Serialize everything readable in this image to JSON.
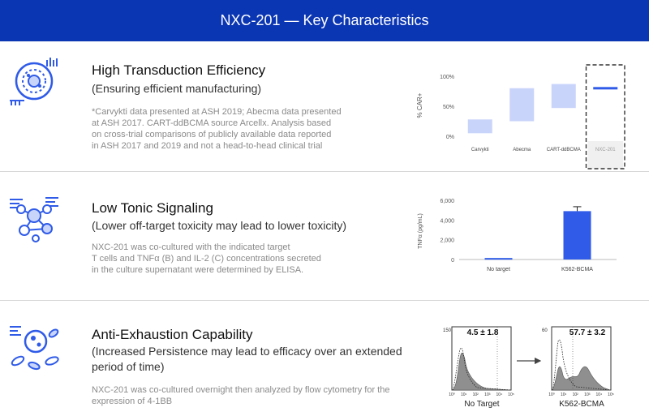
{
  "header": {
    "title": "NXC-201 — Key Characteristics"
  },
  "rows": [
    {
      "title": "High Transduction Efficiency",
      "subtitle": "(Ensuring efficient manufacturing)",
      "note": "*Carvykti data presented at ASH 2019; Abecma data presented\nat ASH 2017. CART-ddBCMA source Arcellx. Analysis based\non cross-trial comparisons of publicly available data reported\nin ASH 2017 and 2019 and not a head-to-head clinical trial",
      "icon": "cell-icon"
    },
    {
      "title": "Low Tonic Signaling",
      "subtitle": "(Lower off-target toxicity may lead to lower toxicity)",
      "note": "NXC-201 was co-cultured with the indicated target\nT cells and TNFα (B) and IL-2 (C) concentrations secreted\nin the culture supernatant were determined by ELISA.",
      "icon": "network-icon"
    },
    {
      "title": "Anti-Exhaustion Capability",
      "subtitle": "(Increased Persistence may lead to efficacy over an extended period of time)",
      "note": "NXC-201 was co-cultured overnight then analyzed by flow cytometry for the\nexpression of 4-1BB",
      "icon": "cells-icon"
    }
  ],
  "colors": {
    "banner": "#0b36b3",
    "accent": "#2f5be8",
    "range_fill": "#c9d4fb"
  },
  "chart_data": [
    {
      "type": "bar",
      "ylabel": "% CAR+",
      "yticks": [
        "0%",
        "50%",
        "100%"
      ],
      "ylim": [
        0,
        100
      ],
      "categories": [
        "Carvykti",
        "Abecma",
        "CART-ddBCMA",
        "NXC-201"
      ],
      "ranges": [
        [
          5,
          28
        ],
        [
          25,
          80
        ],
        [
          47,
          87
        ],
        [
          78,
          82
        ]
      ],
      "highlight": "NXC-201"
    },
    {
      "type": "bar",
      "ylabel": "TNFα (pg/mL)",
      "yticks": [
        "0",
        "2,000",
        "4,000",
        "6,000"
      ],
      "ylim": [
        0,
        6000
      ],
      "categories": [
        "No target",
        "K562-BCMA"
      ],
      "values": [
        150,
        4900
      ],
      "errors": [
        0,
        450
      ]
    },
    {
      "type": "area",
      "panels": [
        {
          "label": "No Target",
          "stat": "4.5 ± 1.8",
          "ymax": "150"
        },
        {
          "label": "K562-BCMA",
          "stat": "57.7 ± 3.2",
          "ymax": "60"
        }
      ],
      "xticks": [
        "10⁰",
        "10¹",
        "10²",
        "10³",
        "10⁴",
        "10⁵"
      ]
    }
  ]
}
